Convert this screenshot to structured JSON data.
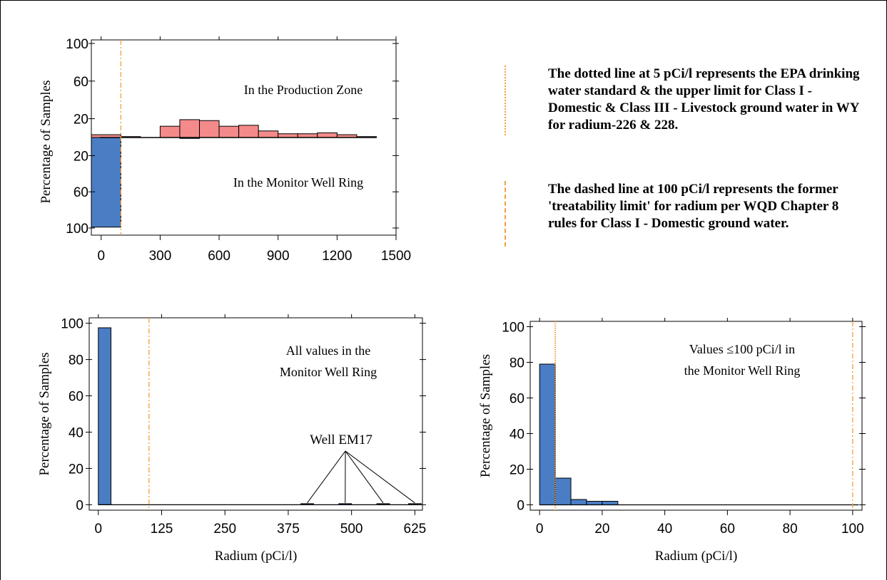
{
  "colors": {
    "production_zone": "#f48a8a",
    "monitor_ring": "#4a7dc4",
    "reference_line": "#f0a040"
  },
  "chart_data": [
    {
      "id": "top",
      "type": "bar",
      "layout": "back-to-back histogram (production zone up, monitor well ring down)",
      "xlabel": "",
      "ylabel": "Percentage of Samples",
      "xlim": [
        -50,
        1500
      ],
      "x_ticks": [
        "0",
        "300",
        "600",
        "900",
        "1200",
        "1500"
      ],
      "y_ticks_up": [
        "20",
        "60",
        "100"
      ],
      "y_ticks_down": [
        "20",
        "60",
        "100"
      ],
      "bin_width": 100,
      "series": [
        {
          "name": "In the Production Zone",
          "bins_start": [
            -50,
            100,
            300,
            400,
            500,
            600,
            700,
            800,
            900,
            1000,
            1100,
            1200,
            1300
          ],
          "bins_end": [
            100,
            200,
            400,
            500,
            600,
            700,
            800,
            900,
            1000,
            1100,
            1200,
            1300,
            1400
          ],
          "values": [
            3,
            1,
            12,
            19,
            18,
            12,
            13,
            7,
            4,
            4,
            5,
            3,
            1
          ]
        },
        {
          "name": "In the Monitor Well Ring",
          "bins_start": [
            -50,
            400
          ],
          "bins_end": [
            100,
            500
          ],
          "values": [
            99,
            1
          ]
        }
      ],
      "vlines": [
        {
          "x": 100,
          "style": "dashed"
        }
      ],
      "annotations": [
        "In the Production Zone",
        "In the Monitor Well Ring"
      ]
    },
    {
      "id": "bottom_left",
      "type": "bar",
      "xlabel": "Radium (pCi/l)",
      "ylabel": "Percentage of Samples",
      "xlim": [
        -18,
        640
      ],
      "ylim": [
        -3,
        103
      ],
      "x_ticks": [
        "0",
        "125",
        "250",
        "375",
        "500",
        "625"
      ],
      "y_ticks": [
        "0",
        "20",
        "40",
        "60",
        "80",
        "100"
      ],
      "bins_start": [
        0,
        400,
        475,
        550,
        612.5
      ],
      "bins_end": [
        25,
        425,
        500,
        575,
        637.5
      ],
      "values": [
        97.5,
        0.6,
        0.6,
        0.6,
        0.6
      ],
      "vlines": [
        {
          "x": 100,
          "style": "dashed"
        }
      ],
      "annotation": {
        "title_lines": [
          "All values in the",
          "Monitor Well Ring"
        ],
        "label": "Well EM17"
      }
    },
    {
      "id": "bottom_right",
      "type": "bar",
      "xlabel": "Radium (pCi/l)",
      "ylabel": "Percentage of Samples",
      "xlim": [
        -3,
        103
      ],
      "ylim": [
        -3,
        103
      ],
      "x_ticks": [
        "0",
        "20",
        "40",
        "60",
        "80",
        "100"
      ],
      "y_ticks": [
        "0",
        "20",
        "40",
        "60",
        "80",
        "100"
      ],
      "bins_start": [
        0,
        5,
        10,
        15,
        20
      ],
      "bins_end": [
        5,
        10,
        15,
        20,
        25
      ],
      "values": [
        79,
        15,
        3,
        2,
        2
      ],
      "vlines": [
        {
          "x": 5,
          "style": "dotted"
        },
        {
          "x": 100,
          "style": "dashed"
        }
      ],
      "annotation": {
        "title_lines": [
          "Values ≤100 pCi/l in",
          "the Monitor Well Ring"
        ]
      }
    }
  ],
  "notes": {
    "dotted": "The dotted line at 5 pCi/l represents the EPA drinking water standard & the upper limit for Class I - Domestic & Class III - Livestock ground water in WY for radium-226 & 228.",
    "dashed": "The dashed line at 100 pCi/l represents the former 'treatability limit' for radium per WQD Chapter 8 rules for Class I - Domestic ground water."
  }
}
